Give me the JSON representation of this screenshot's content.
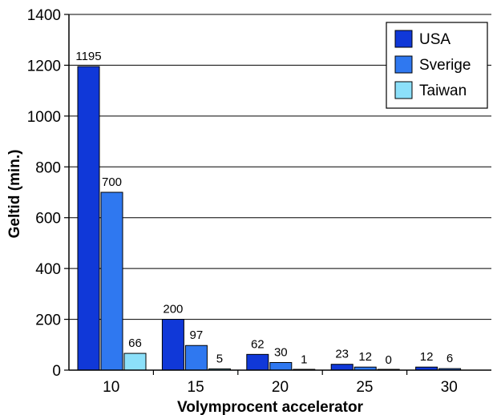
{
  "chart_data": {
    "type": "bar",
    "categories": [
      "10",
      "15",
      "20",
      "25",
      "30"
    ],
    "series": [
      {
        "name": "USA",
        "color": "#1038d8",
        "values": [
          1195,
          200,
          62,
          23,
          12
        ]
      },
      {
        "name": "Sverige",
        "color": "#2f78f0",
        "values": [
          700,
          97,
          30,
          12,
          6
        ]
      },
      {
        "name": "Taiwan",
        "color": "#8ce0fa",
        "values": [
          66,
          5,
          1,
          0,
          null
        ]
      }
    ],
    "data_labels": [
      [
        "1195",
        "700",
        "66"
      ],
      [
        "200",
        "97",
        "5"
      ],
      [
        "62",
        "30",
        "1"
      ],
      [
        "23",
        "12",
        "0"
      ],
      [
        "12",
        "6",
        ""
      ]
    ],
    "xlabel": "Volymprocent accelerator",
    "ylabel": "Geltid (min.)",
    "ylim": [
      0,
      1400
    ],
    "yticks": [
      0,
      200,
      400,
      600,
      800,
      1000,
      1200,
      1400
    ],
    "grid": true,
    "legend_position": "top-right"
  }
}
